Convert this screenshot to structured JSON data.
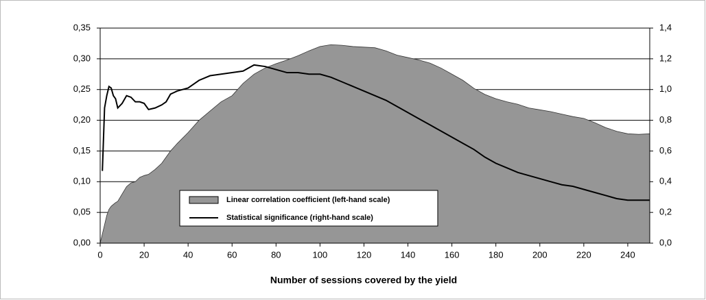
{
  "chart_data": {
    "type": "area-line",
    "xlabel": "Number of sessions covered by the yield",
    "x": [
      0,
      1,
      2,
      3,
      4,
      5,
      6,
      7,
      8,
      10,
      12,
      14,
      16,
      18,
      20,
      22,
      25,
      28,
      30,
      32,
      35,
      40,
      45,
      50,
      55,
      60,
      65,
      70,
      75,
      80,
      85,
      90,
      95,
      100,
      105,
      110,
      115,
      120,
      125,
      130,
      135,
      140,
      145,
      150,
      155,
      160,
      165,
      170,
      175,
      180,
      185,
      190,
      195,
      200,
      205,
      210,
      215,
      220,
      225,
      230,
      235,
      240,
      245,
      250
    ],
    "series": [
      {
        "name": "Linear correlation coefficient (left-hand scale)",
        "type": "area",
        "color": "#969696",
        "values": [
          0,
          0.015,
          0.03,
          0.045,
          0.055,
          0.06,
          0.063,
          0.066,
          0.068,
          0.08,
          0.092,
          0.098,
          0.1,
          0.107,
          0.11,
          0.112,
          0.12,
          0.13,
          0.14,
          0.15,
          0.162,
          0.18,
          0.2,
          0.215,
          0.23,
          0.24,
          0.26,
          0.275,
          0.285,
          0.292,
          0.298,
          0.305,
          0.313,
          0.32,
          0.323,
          0.322,
          0.32,
          0.319,
          0.318,
          0.313,
          0.306,
          0.302,
          0.298,
          0.293,
          0.285,
          0.275,
          0.265,
          0.252,
          0.242,
          0.235,
          0.23,
          0.226,
          0.22,
          0.217,
          0.214,
          0.21,
          0.206,
          0.203,
          0.196,
          0.188,
          0.182,
          0.178,
          0.177,
          0.178
        ]
      },
      {
        "name": "Statistical significance (right-hand scale)",
        "type": "line",
        "color": "#000000",
        "axis": "y2",
        "values": [
          null,
          0.47,
          0.88,
          0.96,
          1.02,
          1.01,
          0.96,
          0.94,
          0.88,
          0.91,
          0.96,
          0.95,
          0.92,
          0.92,
          0.91,
          0.87,
          0.88,
          0.9,
          0.92,
          0.97,
          0.99,
          1.01,
          1.06,
          1.09,
          1.1,
          1.11,
          1.12,
          1.16,
          1.15,
          1.13,
          1.11,
          1.11,
          1.1,
          1.1,
          1.08,
          1.05,
          1.02,
          0.99,
          0.96,
          0.93,
          0.89,
          0.85,
          0.81,
          0.77,
          0.73,
          0.69,
          0.65,
          0.61,
          0.56,
          0.52,
          0.49,
          0.46,
          0.44,
          0.42,
          0.4,
          0.38,
          0.37,
          0.35,
          0.33,
          0.31,
          0.29,
          0.28,
          0.28,
          0.28
        ]
      }
    ],
    "xlim": [
      0,
      250
    ],
    "xticks": [
      0,
      20,
      40,
      60,
      80,
      100,
      120,
      140,
      160,
      180,
      200,
      220,
      240
    ],
    "ylim": [
      0,
      0.35
    ],
    "yticks": [
      {
        "value": 0,
        "label": "0,00"
      },
      {
        "value": 0.05,
        "label": "0,05"
      },
      {
        "value": 0.1,
        "label": "0,10"
      },
      {
        "value": 0.15,
        "label": "0,15"
      },
      {
        "value": 0.2,
        "label": "0,20"
      },
      {
        "value": 0.25,
        "label": "0,25"
      },
      {
        "value": 0.3,
        "label": "0,30"
      },
      {
        "value": 0.35,
        "label": "0,35"
      }
    ],
    "y2lim": [
      0,
      1.4
    ],
    "y2ticks": [
      {
        "value": 0,
        "label": "0,0"
      },
      {
        "value": 0.2,
        "label": "0,2"
      },
      {
        "value": 0.4,
        "label": "0,4"
      },
      {
        "value": 0.6,
        "label": "0,6"
      },
      {
        "value": 0.8,
        "label": "0,8"
      },
      {
        "value": 1,
        "label": "1,0"
      },
      {
        "value": 1.2,
        "label": "1,2"
      },
      {
        "value": 1.4,
        "label": "1,4"
      }
    ],
    "grid": true
  }
}
